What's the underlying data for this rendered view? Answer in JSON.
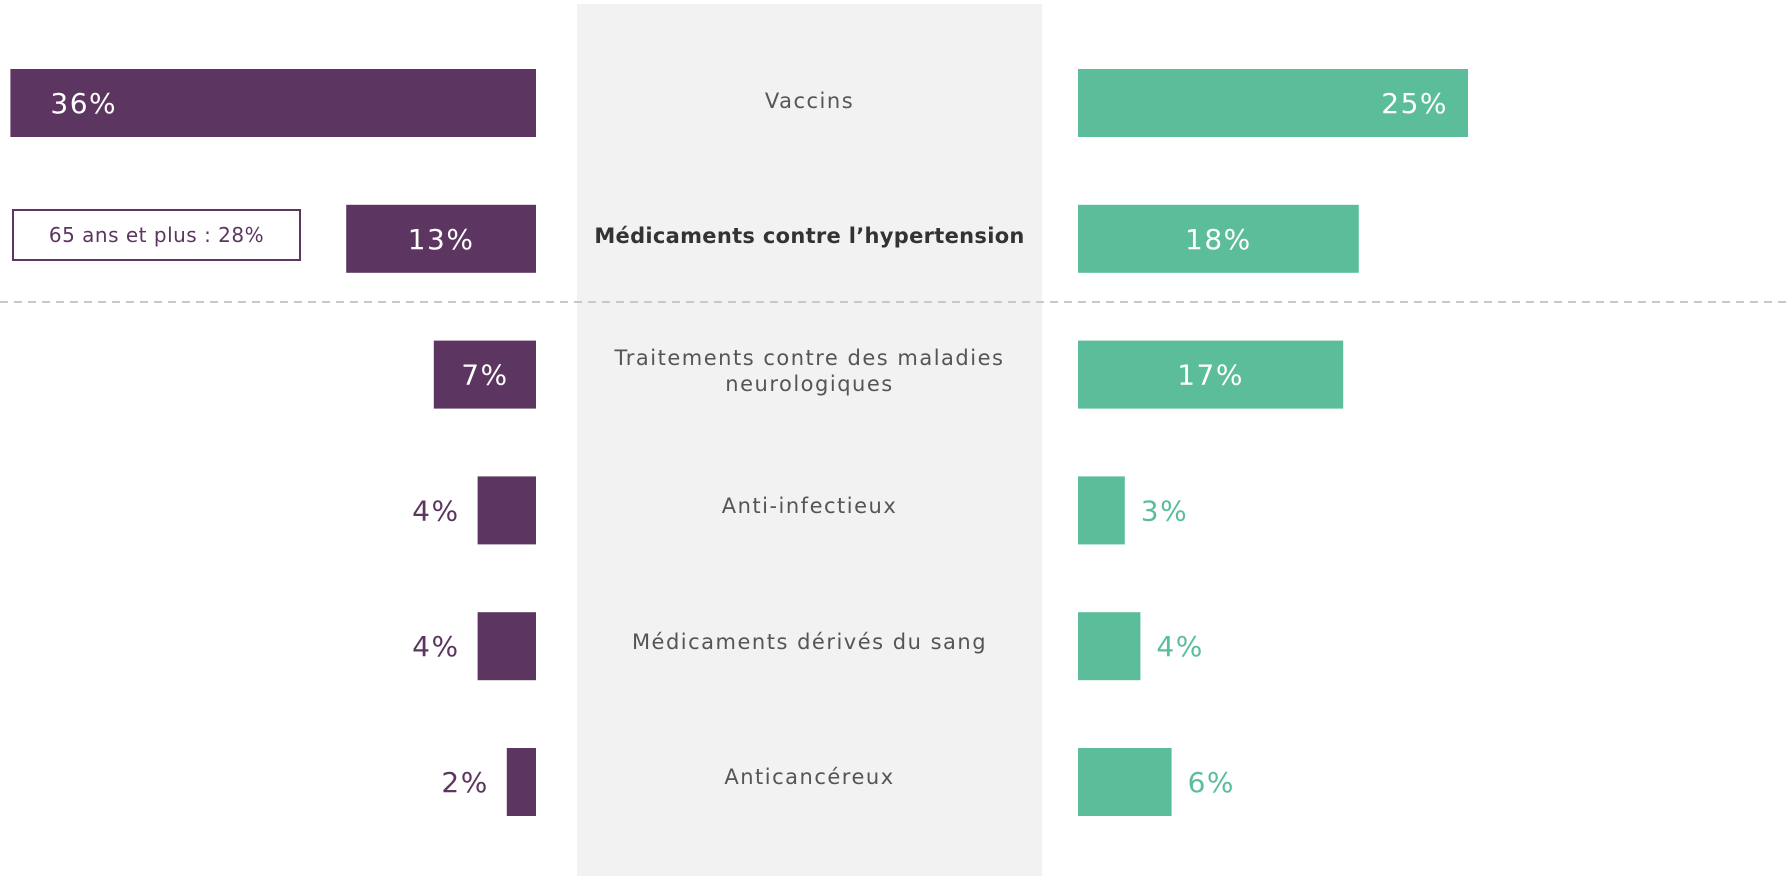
{
  "chart_data": {
    "type": "bar",
    "categories": [
      "Vaccins",
      "Médicaments contre l’hypertension",
      "Traitements contre des maladies neurologiques",
      "Anti-infectieux",
      "Médicaments dérivés du sang",
      "Anticancéreux"
    ],
    "series": [
      {
        "color": "#5c3660",
        "values": [
          36,
          13,
          7,
          4,
          4,
          2
        ],
        "value_labels": [
          "36%",
          "13%",
          "7%",
          "4%",
          "4%",
          "2%"
        ]
      },
      {
        "color": "#5bbd9a",
        "values": [
          25,
          18,
          17,
          3,
          4,
          6
        ],
        "value_labels": [
          "25%",
          "18%",
          "17%",
          "3%",
          "4%",
          "6%"
        ]
      }
    ],
    "annotations": [
      "65 ans et plus : 28%"
    ]
  }
}
